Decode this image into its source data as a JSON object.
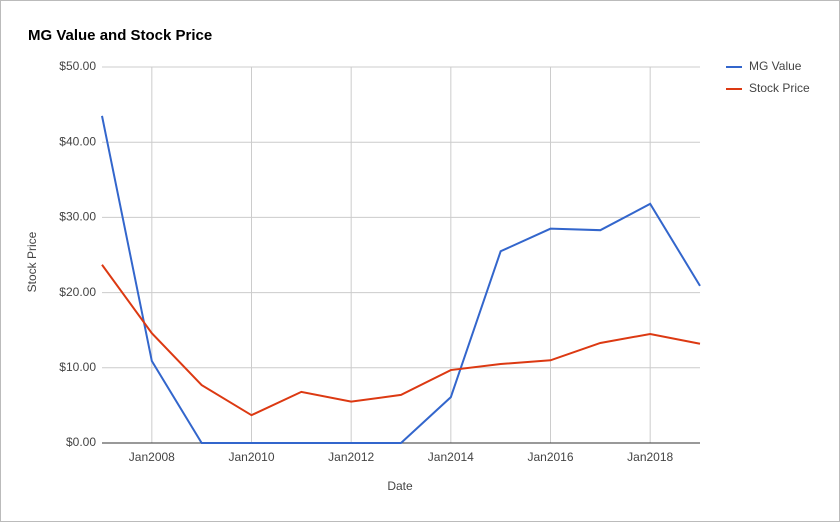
{
  "chart_data": {
    "type": "line",
    "title": "MG Value and Stock Price",
    "x_label": "Date",
    "y_label": "Stock Price",
    "x": [
      2007,
      2008,
      2009,
      2010,
      2011,
      2012,
      2013,
      2014,
      2015,
      2016,
      2017,
      2018,
      2019
    ],
    "series": [
      {
        "name": "MG Value",
        "color": "#3366cc",
        "values": [
          43.5,
          10.9,
          0,
          0,
          0,
          0,
          0,
          6.1,
          25.5,
          28.5,
          28.3,
          31.8,
          20.9
        ]
      },
      {
        "name": "Stock Price",
        "color": "#dc3912",
        "values": [
          23.7,
          14.6,
          7.7,
          3.7,
          6.8,
          5.5,
          6.4,
          9.7,
          10.5,
          11.0,
          13.3,
          14.5,
          13.2
        ]
      }
    ],
    "xlim": [
      2007,
      2019
    ],
    "xticks": [
      {
        "value": 2008,
        "label": "Jan2008"
      },
      {
        "value": 2010,
        "label": "Jan2010"
      },
      {
        "value": 2012,
        "label": "Jan2012"
      },
      {
        "value": 2014,
        "label": "Jan2014"
      },
      {
        "value": 2016,
        "label": "Jan2016"
      },
      {
        "value": 2018,
        "label": "Jan2018"
      }
    ],
    "ylim": [
      0,
      50
    ],
    "yticks": [
      {
        "value": 0,
        "label": "$0.00"
      },
      {
        "value": 10,
        "label": "$10.00"
      },
      {
        "value": 20,
        "label": "$20.00"
      },
      {
        "value": 30,
        "label": "$30.00"
      },
      {
        "value": 40,
        "label": "$40.00"
      },
      {
        "value": 50,
        "label": "$50.00"
      }
    ],
    "grid": true,
    "legend": "right"
  }
}
